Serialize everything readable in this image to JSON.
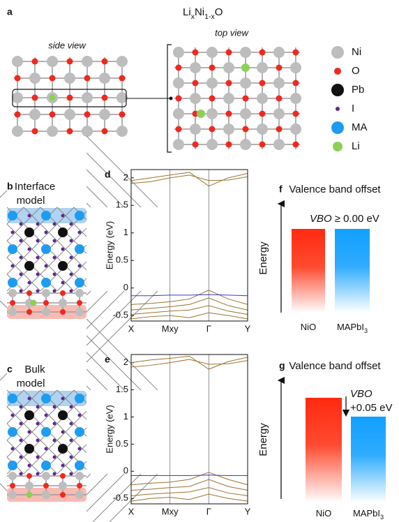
{
  "panel_a": {
    "letter": "a",
    "title_parts": [
      "Li",
      "x",
      "Ni",
      "1-x",
      "O"
    ],
    "side_view": "side view",
    "top_view": "top view"
  },
  "legend": [
    {
      "label": "Ni",
      "color": "#bdbdbd"
    },
    {
      "label": "O",
      "color": "#f0281e"
    },
    {
      "label": "Pb",
      "color": "#111111"
    },
    {
      "label": "I",
      "color": "#5b2a91"
    },
    {
      "label": "MA",
      "color": "#1e9cf0"
    },
    {
      "label": "Li",
      "color": "#8cd055"
    }
  ],
  "panel_b": {
    "letter": "b",
    "title": [
      "Interface",
      "model"
    ]
  },
  "panel_c": {
    "letter": "c",
    "title": [
      "Bulk",
      "model"
    ]
  },
  "chart_data": [
    {
      "type": "line",
      "letter": "d",
      "y_label": "Energy (eV)",
      "x": [
        0,
        0.5,
        1,
        1.5,
        2,
        2.5,
        3
      ],
      "xlim": [
        0,
        3
      ],
      "xticks": [
        {
          "value": 0,
          "label": "X"
        },
        {
          "value": 1,
          "label": "Mxy"
        },
        {
          "value": 2,
          "label": "Γ"
        },
        {
          "value": 3,
          "label": "Y"
        }
      ],
      "ylim": [
        -0.6,
        2.15
      ],
      "yticks": [
        -0.5,
        0,
        0.5,
        1,
        1.5,
        2
      ],
      "series": [
        {
          "color": "#9a7430",
          "values": [
            -0.3,
            -0.28,
            -0.25,
            -0.2,
            -0.04,
            -0.2,
            -0.3
          ]
        },
        {
          "color": "#9a7430",
          "values": [
            -0.4,
            -0.37,
            -0.34,
            -0.3,
            -0.18,
            -0.32,
            -0.4
          ]
        },
        {
          "color": "#9a7430",
          "values": [
            -0.48,
            -0.45,
            -0.42,
            -0.4,
            -0.32,
            -0.42,
            -0.48
          ]
        },
        {
          "color": "#9a7430",
          "values": [
            -0.56,
            -0.52,
            -0.5,
            -0.54,
            -0.45,
            -0.5,
            -0.56
          ]
        },
        {
          "color": "#9a7430",
          "values": [
            1.95,
            2.0,
            2.05,
            2.1,
            1.85,
            2.0,
            2.08
          ]
        },
        {
          "color": "#9a7430",
          "values": [
            1.9,
            1.93,
            2.0,
            2.05,
            1.95,
            1.96,
            2.02
          ]
        },
        {
          "color": "#3a3ad0",
          "values": [
            -0.14,
            -0.14,
            -0.13,
            -0.13,
            -0.12,
            -0.13,
            -0.14
          ]
        }
      ]
    },
    {
      "type": "line",
      "letter": "e",
      "y_label": "Energy (eV)",
      "x": [
        0,
        0.5,
        1,
        1.5,
        2,
        2.5,
        3
      ],
      "xlim": [
        0,
        3
      ],
      "xticks": [
        {
          "value": 0,
          "label": "X"
        },
        {
          "value": 1,
          "label": "Mxy"
        },
        {
          "value": 2,
          "label": "Γ"
        },
        {
          "value": 3,
          "label": "Y"
        }
      ],
      "ylim": [
        -0.6,
        2.15
      ],
      "yticks": [
        -0.5,
        0,
        0.5,
        1,
        1.5,
        2
      ],
      "series": [
        {
          "color": "#9a7430",
          "values": [
            -0.25,
            -0.22,
            -0.2,
            -0.15,
            -0.02,
            -0.15,
            -0.25
          ]
        },
        {
          "color": "#9a7430",
          "values": [
            -0.35,
            -0.33,
            -0.3,
            -0.28,
            -0.15,
            -0.28,
            -0.35
          ]
        },
        {
          "color": "#9a7430",
          "values": [
            -0.45,
            -0.42,
            -0.4,
            -0.38,
            -0.3,
            -0.4,
            -0.45
          ]
        },
        {
          "color": "#9a7430",
          "values": [
            -0.55,
            -0.5,
            -0.48,
            -0.52,
            -0.42,
            -0.5,
            -0.55
          ]
        },
        {
          "color": "#9a7430",
          "values": [
            2.0,
            2.05,
            2.08,
            2.12,
            1.88,
            2.02,
            2.1
          ]
        },
        {
          "color": "#9a7430",
          "values": [
            1.92,
            1.95,
            2.0,
            2.06,
            1.97,
            1.98,
            2.04
          ]
        },
        {
          "color": "#3a3ad0",
          "values": [
            -0.08,
            -0.08,
            -0.08,
            -0.08,
            -0.07,
            -0.08,
            -0.08
          ]
        }
      ]
    }
  ],
  "panel_f": {
    "letter": "f",
    "title": "Valence band offset",
    "axis_label": "Energy",
    "vbo_label": "VBO",
    "vbo_value": "≥ 0.00 eV",
    "bars": [
      {
        "label_parts": [
          "NiO"
        ],
        "color": "#ff2a10"
      },
      {
        "label_parts": [
          "MAPbI",
          "3"
        ],
        "color": "#10a0ff"
      }
    ]
  },
  "panel_g": {
    "letter": "g",
    "title": "Valence band offset",
    "axis_label": "Energy",
    "vbo_label": "VBO",
    "vbo_value": "+0.05 eV",
    "bars": [
      {
        "label_parts": [
          "NiO"
        ],
        "color": "#ff2a10"
      },
      {
        "label_parts": [
          "MAPbI",
          "3"
        ],
        "color": "#10a0ff"
      }
    ]
  }
}
